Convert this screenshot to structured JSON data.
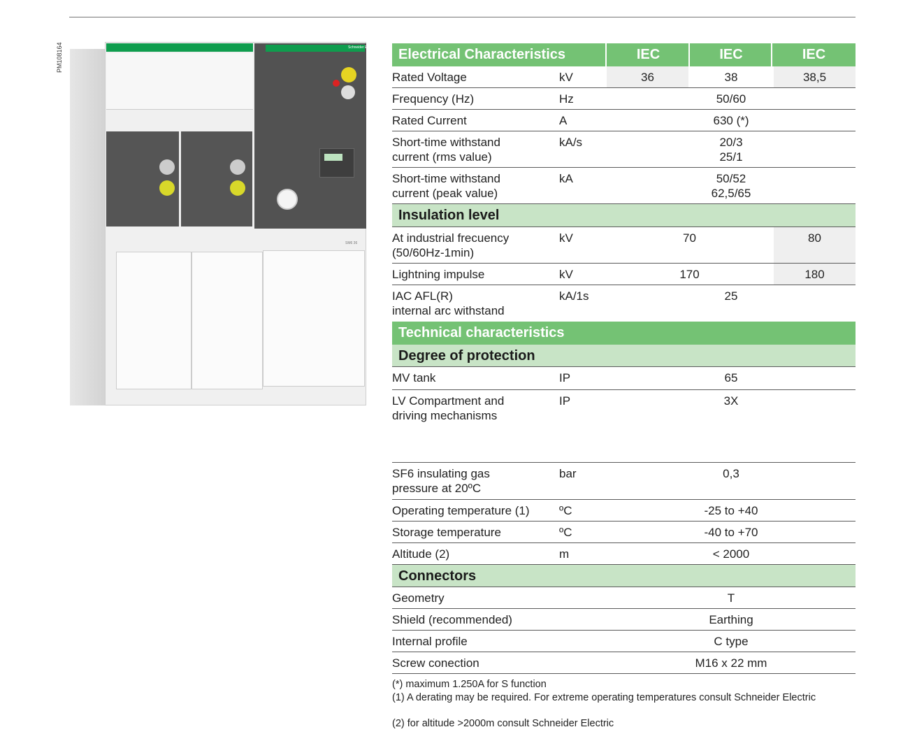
{
  "photo_code": "PM108164",
  "product_image": {
    "brand_logo_text": "Schneider Electric",
    "panel_label": "SM6 36"
  },
  "colors": {
    "header_green": "#74c274",
    "section_green": "#c8e4c6",
    "shaded_cell": "#efefef",
    "panel_top_green": "#0f9d4e"
  },
  "table": {
    "rows": [
      {
        "type": "header",
        "title": "Electrical Characteristics",
        "columns": [
          "IEC",
          "IEC",
          "IEC"
        ]
      },
      {
        "type": "row",
        "label": [
          "Rated Voltage"
        ],
        "unit": "kV",
        "cells": [
          {
            "text": [
              "36"
            ],
            "span": 1,
            "shaded": true
          },
          {
            "text": [
              "38"
            ],
            "span": 1
          },
          {
            "text": [
              "38,5"
            ],
            "span": 1,
            "shaded": true
          }
        ]
      },
      {
        "type": "row",
        "label": [
          "Frequency (Hz)"
        ],
        "unit": "Hz",
        "cells": [
          {
            "text": [
              "50/60"
            ],
            "span": 3
          }
        ]
      },
      {
        "type": "row",
        "label": [
          "Rated Current"
        ],
        "unit": "A",
        "cells": [
          {
            "text": [
              "630 (*)"
            ],
            "span": 3
          }
        ]
      },
      {
        "type": "row",
        "label": [
          "Short-time withstand",
          "current (rms value)"
        ],
        "unit": "kA/s",
        "cells": [
          {
            "text": [
              "20/3",
              "25/1"
            ],
            "span": 3
          }
        ]
      },
      {
        "type": "row",
        "label": [
          "Short-time withstand",
          "current (peak value)"
        ],
        "unit": "kA",
        "cells": [
          {
            "text": [
              "50/52",
              "62,5/65"
            ],
            "span": 3
          }
        ]
      },
      {
        "type": "section",
        "title": "Insulation level"
      },
      {
        "type": "row",
        "label": [
          "At industrial frecuency",
          "(50/60Hz-1min)"
        ],
        "unit": "kV",
        "cells": [
          {
            "text": [
              "70"
            ],
            "span": 2
          },
          {
            "text": [
              "80"
            ],
            "span": 1,
            "shaded": true
          }
        ]
      },
      {
        "type": "row",
        "label": [
          "Lightning impulse"
        ],
        "unit": "kV",
        "cells": [
          {
            "text": [
              "170"
            ],
            "span": 2
          },
          {
            "text": [
              "180"
            ],
            "span": 1,
            "shaded": true
          }
        ]
      },
      {
        "type": "row",
        "label": [
          "IAC AFL(R)",
          "internal arc withstand"
        ],
        "unit": "kA/1s",
        "cells": [
          {
            "text": [
              "25"
            ],
            "span": 3
          }
        ],
        "no_border": true
      },
      {
        "type": "header",
        "title": "Technical characteristics"
      },
      {
        "type": "section",
        "title": "Degree of protection"
      },
      {
        "type": "row",
        "label": [
          "MV tank"
        ],
        "unit": "IP",
        "cells": [
          {
            "text": [
              "65"
            ],
            "span": 3
          }
        ]
      },
      {
        "type": "row",
        "label": [
          "LV Compartment and",
          "driving mechanisms"
        ],
        "unit": "IP",
        "cells": [
          {
            "text": [
              "3X"
            ],
            "span": 3
          }
        ]
      },
      {
        "type": "row",
        "label": [
          "SF6 insulating gas",
          "pressure at 20ºC"
        ],
        "unit": "bar",
        "cells": [
          {
            "text": [
              "0,3"
            ],
            "span": 3
          }
        ]
      },
      {
        "type": "row",
        "label": [
          "Operating temperature (1)"
        ],
        "unit": "ºC",
        "cells": [
          {
            "text": [
              "-25 to +40"
            ],
            "span": 3
          }
        ]
      },
      {
        "type": "row",
        "label": [
          "Storage temperature"
        ],
        "unit": "ºC",
        "cells": [
          {
            "text": [
              "-40 to +70"
            ],
            "span": 3
          }
        ]
      },
      {
        "type": "row",
        "label": [
          "Altitude (2)"
        ],
        "unit": "m",
        "cells": [
          {
            "text": [
              "< 2000"
            ],
            "span": 3
          }
        ]
      },
      {
        "type": "section",
        "title": "Connectors"
      },
      {
        "type": "row",
        "label": [
          "Geometry"
        ],
        "unit": "",
        "cells": [
          {
            "text": [
              "T"
            ],
            "span": 3
          }
        ]
      },
      {
        "type": "row",
        "label": [
          "Shield (recommended)"
        ],
        "unit": "",
        "cells": [
          {
            "text": [
              "Earthing"
            ],
            "span": 3
          }
        ]
      },
      {
        "type": "row",
        "label": [
          "Internal profile"
        ],
        "unit": "",
        "cells": [
          {
            "text": [
              "C type"
            ],
            "span": 3
          }
        ]
      },
      {
        "type": "row",
        "label": [
          "Screw conection"
        ],
        "unit": "",
        "cells": [
          {
            "text": [
              "M16 x 22 mm"
            ],
            "span": 3
          }
        ]
      }
    ]
  },
  "footnotes": [
    "(*) maximum 1.250A for S function",
    "(1) A derating may be required. For extreme operating temperatures consult Schneider Electric",
    "(2) for altitude >2000m consult Schneider Electric"
  ]
}
